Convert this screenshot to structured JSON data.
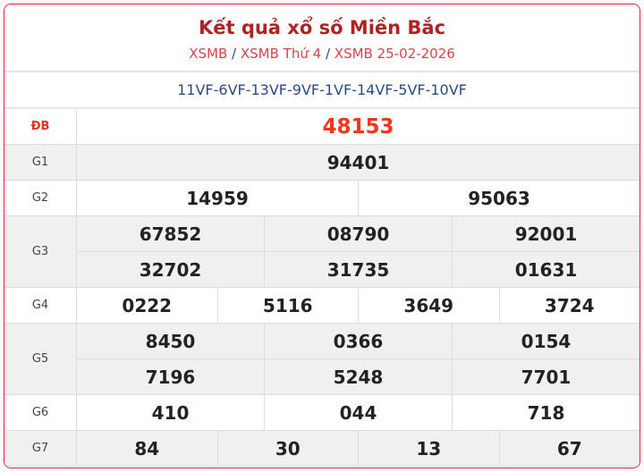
{
  "header": {
    "title": "Kết quả xổ số Miền Bắc",
    "breadcrumbs": [
      "XSMB",
      "XSMB Thứ 4",
      "XSMB 25-02-2026"
    ],
    "separator": "/"
  },
  "codes": "11VF-6VF-13VF-9VF-1VF-14VF-5VF-10VF",
  "prizes": [
    {
      "label": "ĐB",
      "rows": [
        [
          "48153"
        ]
      ]
    },
    {
      "label": "G1",
      "rows": [
        [
          "94401"
        ]
      ]
    },
    {
      "label": "G2",
      "rows": [
        [
          "14959",
          "95063"
        ]
      ]
    },
    {
      "label": "G3",
      "rows": [
        [
          "67852",
          "08790",
          "92001"
        ],
        [
          "32702",
          "31735",
          "01631"
        ]
      ]
    },
    {
      "label": "G4",
      "rows": [
        [
          "0222",
          "5116",
          "3649",
          "3724"
        ]
      ]
    },
    {
      "label": "G5",
      "rows": [
        [
          "8450",
          "0366",
          "0154"
        ],
        [
          "7196",
          "5248",
          "7701"
        ]
      ]
    },
    {
      "label": "G6",
      "rows": [
        [
          "410",
          "044",
          "718"
        ]
      ]
    },
    {
      "label": "G7",
      "rows": [
        [
          "84",
          "30",
          "13",
          "67"
        ]
      ]
    }
  ],
  "colors": {
    "border": "#e0232e",
    "title": "#b22222",
    "special": "#f2361c",
    "codes": "#2b4a8a"
  }
}
